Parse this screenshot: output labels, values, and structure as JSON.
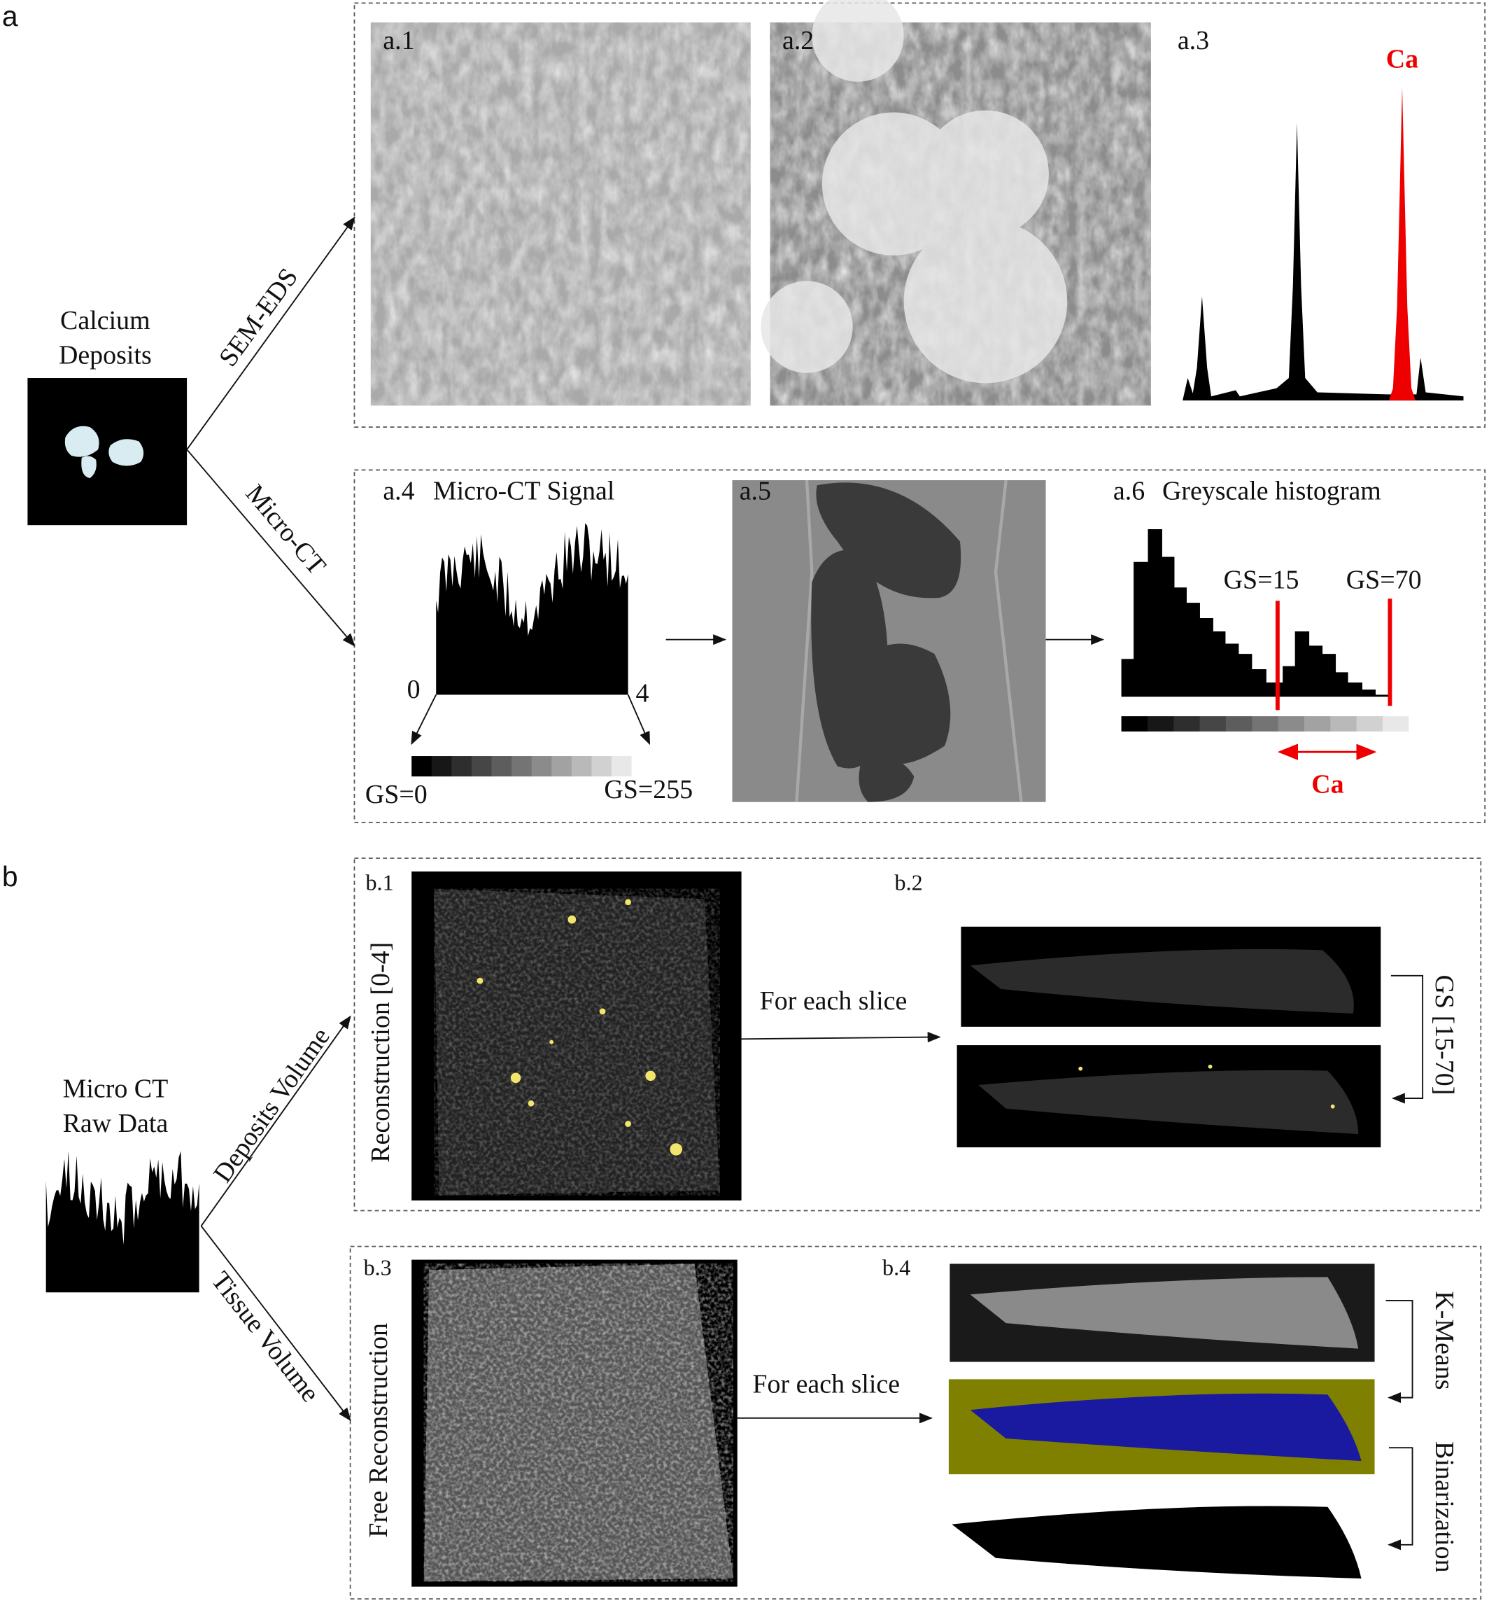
{
  "panel_a": {
    "label": "a",
    "sample_label": [
      "Calcium",
      "Deposits"
    ],
    "branches": [
      "SEM-EDS",
      "Micro-CT"
    ],
    "a1": "a.1",
    "a2": "a.2",
    "a3": {
      "label": "a.3",
      "peak": "Ca"
    },
    "a4": {
      "label": "a.4",
      "title": "Micro-CT Signal",
      "min": "0",
      "max": "4",
      "gs_min": "GS=0",
      "gs_max": "GS=255"
    },
    "a5": "a.5",
    "a6": {
      "label": "a.6",
      "title": "Greyscale histogram",
      "low": "GS=15",
      "high": "GS=70",
      "range": "Ca"
    }
  },
  "panel_b": {
    "label": "b",
    "source_label": [
      "Micro CT",
      "Raw Data"
    ],
    "branches": [
      "Deposits Volume",
      "Tissue Volume"
    ],
    "b1": {
      "label": "b.1",
      "caption": "Reconstruction [0-4]"
    },
    "step1": "For each slice",
    "b2": {
      "label": "b.2",
      "threshold": "GS [15-70]"
    },
    "b3": {
      "label": "b.3",
      "caption": "Free Reconstruction"
    },
    "step2": "For each slice",
    "b4": {
      "label": "b.4",
      "steps": [
        "K-Means",
        "Binarization"
      ]
    }
  }
}
